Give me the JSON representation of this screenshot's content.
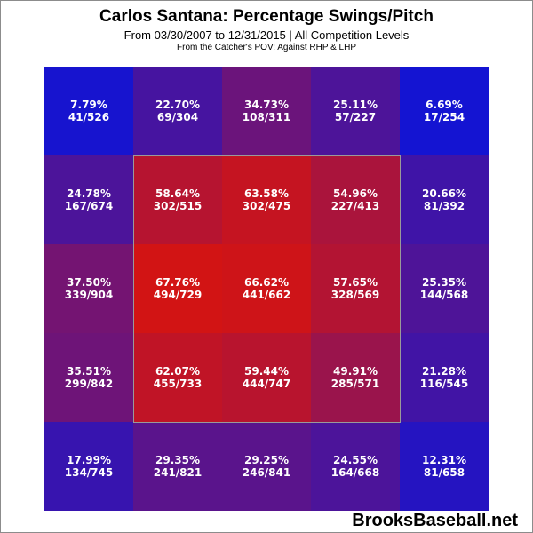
{
  "header": {
    "title": "Carlos Santana: Percentage Swings/Pitch",
    "subtitle": "From 03/30/2007 to 12/31/2015 | All Competition Levels",
    "pov": "From the Catcher's POV:  Against RHP & LHP"
  },
  "watermark": "BrooksBaseball.net",
  "colors": {
    "low": "#1414d2",
    "high": "#d21414",
    "zone_border": "#9a9a9a"
  },
  "chart_data": {
    "type": "heatmap",
    "title": "Carlos Santana: Percentage Swings/Pitch",
    "rows": 5,
    "cols": 5,
    "strike_zone": {
      "rows": [
        1,
        3
      ],
      "cols": [
        1,
        3
      ]
    },
    "cells": [
      [
        {
          "pct": "7.79%",
          "frac": "41/526",
          "value": 7.79
        },
        {
          "pct": "22.70%",
          "frac": "69/304",
          "value": 22.7
        },
        {
          "pct": "34.73%",
          "frac": "108/311",
          "value": 34.73
        },
        {
          "pct": "25.11%",
          "frac": "57/227",
          "value": 25.11
        },
        {
          "pct": "6.69%",
          "frac": "17/254",
          "value": 6.69
        }
      ],
      [
        {
          "pct": "24.78%",
          "frac": "167/674",
          "value": 24.78
        },
        {
          "pct": "58.64%",
          "frac": "302/515",
          "value": 58.64
        },
        {
          "pct": "63.58%",
          "frac": "302/475",
          "value": 63.58
        },
        {
          "pct": "54.96%",
          "frac": "227/413",
          "value": 54.96
        },
        {
          "pct": "20.66%",
          "frac": "81/392",
          "value": 20.66
        }
      ],
      [
        {
          "pct": "37.50%",
          "frac": "339/904",
          "value": 37.5
        },
        {
          "pct": "67.76%",
          "frac": "494/729",
          "value": 67.76
        },
        {
          "pct": "66.62%",
          "frac": "441/662",
          "value": 66.62
        },
        {
          "pct": "57.65%",
          "frac": "328/569",
          "value": 57.65
        },
        {
          "pct": "25.35%",
          "frac": "144/568",
          "value": 25.35
        }
      ],
      [
        {
          "pct": "35.51%",
          "frac": "299/842",
          "value": 35.51
        },
        {
          "pct": "62.07%",
          "frac": "455/733",
          "value": 62.07
        },
        {
          "pct": "59.44%",
          "frac": "444/747",
          "value": 59.44
        },
        {
          "pct": "49.91%",
          "frac": "285/571",
          "value": 49.91
        },
        {
          "pct": "21.28%",
          "frac": "116/545",
          "value": 21.28
        }
      ],
      [
        {
          "pct": "17.99%",
          "frac": "134/745",
          "value": 17.99
        },
        {
          "pct": "29.35%",
          "frac": "241/821",
          "value": 29.35
        },
        {
          "pct": "29.25%",
          "frac": "246/841",
          "value": 29.25
        },
        {
          "pct": "24.55%",
          "frac": "164/668",
          "value": 24.55
        },
        {
          "pct": "12.31%",
          "frac": "81/658",
          "value": 12.31
        }
      ]
    ]
  }
}
